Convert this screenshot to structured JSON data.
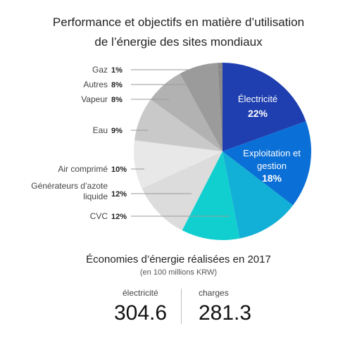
{
  "title_lines": [
    "Performance et objectifs en matière d’utilisation",
    "de l’énergie des sites mondiaux"
  ],
  "chart_data": {
    "type": "pie",
    "slices": [
      {
        "label": "Électricité",
        "value": 22,
        "display": "22%",
        "color": "#1f3fb0",
        "label_inside": true
      },
      {
        "label": "Exploitation et gestion",
        "value": 18,
        "display": "18%",
        "color": "#0a6fd6",
        "label_inside": true
      },
      {
        "label": "",
        "value": 13,
        "display": "",
        "color": "#12b0d6",
        "label_inside": false
      },
      {
        "label": "CVC",
        "value": 12,
        "display": "12%",
        "color": "#12cfcf",
        "label_inside": false
      },
      {
        "label": "Générateurs d’azote liquide",
        "value": 12,
        "display": "12%",
        "color": "#dcdcdc",
        "label_inside": false
      },
      {
        "label": "Air comprimé",
        "value": 10,
        "display": "10%",
        "color": "#e8e8e8",
        "label_inside": false
      },
      {
        "label": "Eau",
        "value": 9,
        "display": "9%",
        "color": "#c9c9c9",
        "label_inside": false
      },
      {
        "label": "Vapeur",
        "value": 8,
        "display": "8%",
        "color": "#b2b2b2",
        "label_inside": false
      },
      {
        "label": "Autres",
        "value": 8,
        "display": "8%",
        "color": "#9b9b9b",
        "label_inside": false
      },
      {
        "label": "Gaz",
        "value": 1,
        "display": "1%",
        "color": "#8a8a8a",
        "label_inside": false
      }
    ]
  },
  "summary": {
    "title": "Économies d’énergie réalisées en 2017",
    "subtitle": "(en 100 millions KRW)",
    "columns": [
      {
        "label": "électricité",
        "value": "304.6"
      },
      {
        "label": "charges",
        "value": "281.3"
      }
    ]
  }
}
